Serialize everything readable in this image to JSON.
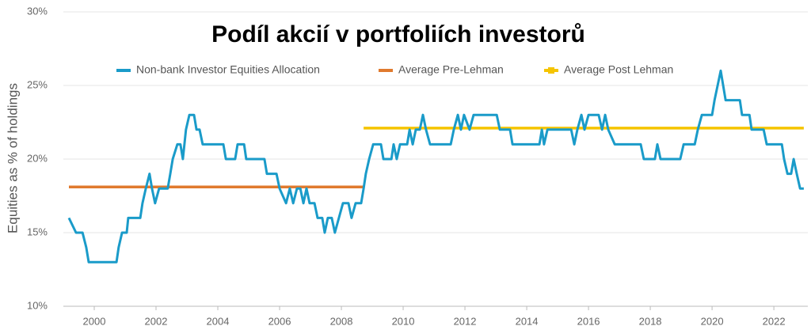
{
  "chart_data": {
    "type": "line",
    "title": "Podíl akcií v portfoliích investorů",
    "y_label": "Equities as % of holdings",
    "xlim": [
      1999,
      2023.1
    ],
    "xticks": [
      2000,
      2002,
      2004,
      2006,
      2008,
      2010,
      2012,
      2014,
      2016,
      2018,
      2020,
      2022
    ],
    "ylim": [
      10,
      30
    ],
    "yticks": [
      {
        "value": 10,
        "label": "10%"
      },
      {
        "value": 15,
        "label": "15%"
      },
      {
        "value": 20,
        "label": "20%"
      },
      {
        "value": 25,
        "label": "25%"
      },
      {
        "value": 30,
        "label": "30%"
      }
    ],
    "grid": true,
    "legend": "top",
    "series": [
      {
        "name": "Non-bank Investor Equities Allocation",
        "color": "#1a9bc9",
        "x": [
          1999.18,
          1999.41,
          1999.62,
          1999.74,
          1999.82,
          2000.72,
          2000.79,
          2000.9,
          2001.05,
          2001.1,
          2001.49,
          2001.56,
          2001.67,
          2001.79,
          2001.87,
          2001.97,
          2002.1,
          2002.38,
          2002.46,
          2002.54,
          2002.69,
          2002.79,
          2002.87,
          2002.97,
          2003.08,
          2003.23,
          2003.31,
          2003.41,
          2003.51,
          2004.18,
          2004.26,
          2004.56,
          2004.64,
          2004.85,
          2004.92,
          2005.51,
          2005.59,
          2005.9,
          2006.0,
          2006.21,
          2006.33,
          2006.44,
          2006.56,
          2006.67,
          2006.77,
          2006.87,
          2006.97,
          2007.13,
          2007.23,
          2007.38,
          2007.46,
          2007.56,
          2007.69,
          2007.79,
          2007.92,
          2008.05,
          2008.23,
          2008.33,
          2008.46,
          2008.64,
          2008.72,
          2008.79,
          2008.9,
          2009.03,
          2009.28,
          2009.36,
          2009.62,
          2009.69,
          2009.79,
          2009.9,
          2010.13,
          2010.21,
          2010.31,
          2010.41,
          2010.54,
          2010.64,
          2010.74,
          2010.87,
          2011.54,
          2011.64,
          2011.77,
          2011.87,
          2011.97,
          2012.15,
          2012.28,
          2013.03,
          2013.13,
          2013.46,
          2013.54,
          2014.41,
          2014.49,
          2014.56,
          2014.67,
          2015.44,
          2015.54,
          2015.64,
          2015.77,
          2015.87,
          2016.0,
          2016.33,
          2016.44,
          2016.54,
          2016.64,
          2016.85,
          2017.69,
          2017.79,
          2018.15,
          2018.23,
          2018.33,
          2018.97,
          2019.08,
          2019.44,
          2019.54,
          2019.67,
          2020.0,
          2020.08,
          2020.18,
          2020.28,
          2020.36,
          2020.44,
          2020.9,
          2020.97,
          2021.21,
          2021.28,
          2021.67,
          2021.77,
          2022.26,
          2022.33,
          2022.44,
          2022.56,
          2022.64,
          2022.74,
          2022.85,
          2022.97
        ],
        "values": [
          16,
          15,
          15,
          14,
          13,
          13,
          14,
          15,
          15,
          16,
          16,
          17,
          18,
          19,
          18,
          17,
          18,
          18,
          19,
          20,
          21,
          21,
          20,
          22,
          23,
          23,
          22,
          22,
          21,
          21,
          20,
          20,
          21,
          21,
          20,
          20,
          19,
          19,
          18,
          17,
          18,
          17,
          18,
          18,
          17,
          18,
          17,
          17,
          16,
          16,
          15,
          16,
          16,
          15,
          16,
          17,
          17,
          16,
          17,
          17,
          18,
          19,
          20,
          21,
          21,
          20,
          20,
          21,
          20,
          21,
          21,
          22,
          21,
          22,
          22,
          23,
          22,
          21,
          21,
          22,
          23,
          22,
          23,
          22,
          23,
          23,
          22,
          22,
          21,
          21,
          22,
          21,
          22,
          22,
          21,
          22,
          23,
          22,
          23,
          23,
          22,
          23,
          22,
          21,
          21,
          20,
          20,
          21,
          20,
          20,
          21,
          21,
          22,
          23,
          23,
          24,
          25,
          26,
          25,
          24,
          24,
          23,
          23,
          22,
          22,
          21,
          21,
          20,
          19,
          19,
          20,
          19,
          18,
          18
        ]
      },
      {
        "name": "Average Pre-Lehman",
        "color": "#e07a2e",
        "x": [
          1999.18,
          2008.72
        ],
        "values": [
          18.1,
          18.1
        ]
      },
      {
        "name": "Average Post Lehman",
        "color": "#f5c400",
        "x": [
          2008.72,
          2022.97
        ],
        "values": [
          22.1,
          22.1
        ]
      }
    ]
  }
}
